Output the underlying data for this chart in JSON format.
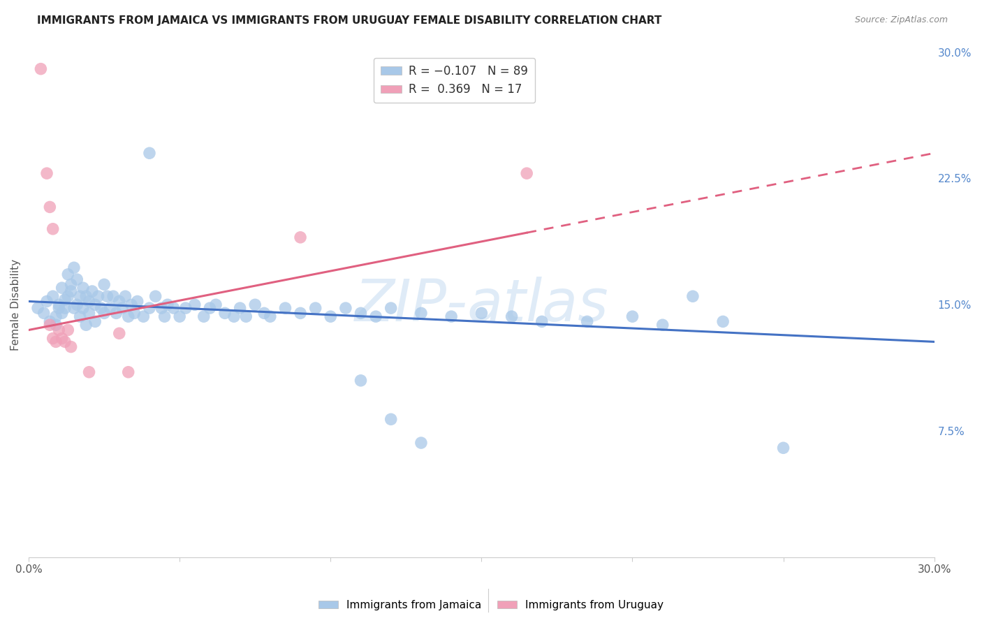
{
  "title": "IMMIGRANTS FROM JAMAICA VS IMMIGRANTS FROM URUGUAY FEMALE DISABILITY CORRELATION CHART",
  "source": "Source: ZipAtlas.com",
  "ylabel": "Female Disability",
  "x_min": 0.0,
  "x_max": 0.3,
  "y_min": 0.0,
  "y_max": 0.3,
  "y_ticks_right": [
    0.075,
    0.15,
    0.225,
    0.3
  ],
  "y_tick_labels_right": [
    "7.5%",
    "15.0%",
    "22.5%",
    "30.0%"
  ],
  "watermark": "ZIPAtlas",
  "blue_color": "#a8c8e8",
  "pink_color": "#f0a0b8",
  "blue_line_color": "#4472c4",
  "pink_line_color": "#e06080",
  "blue_scatter": [
    [
      0.003,
      0.148
    ],
    [
      0.005,
      0.145
    ],
    [
      0.006,
      0.152
    ],
    [
      0.007,
      0.14
    ],
    [
      0.008,
      0.155
    ],
    [
      0.009,
      0.138
    ],
    [
      0.009,
      0.143
    ],
    [
      0.01,
      0.15
    ],
    [
      0.01,
      0.148
    ],
    [
      0.011,
      0.16
    ],
    [
      0.011,
      0.145
    ],
    [
      0.012,
      0.153
    ],
    [
      0.012,
      0.148
    ],
    [
      0.013,
      0.168
    ],
    [
      0.013,
      0.155
    ],
    [
      0.014,
      0.162
    ],
    [
      0.014,
      0.158
    ],
    [
      0.015,
      0.172
    ],
    [
      0.015,
      0.148
    ],
    [
      0.016,
      0.165
    ],
    [
      0.016,
      0.15
    ],
    [
      0.017,
      0.155
    ],
    [
      0.017,
      0.143
    ],
    [
      0.018,
      0.16
    ],
    [
      0.018,
      0.148
    ],
    [
      0.019,
      0.155
    ],
    [
      0.019,
      0.138
    ],
    [
      0.02,
      0.152
    ],
    [
      0.02,
      0.145
    ],
    [
      0.021,
      0.158
    ],
    [
      0.022,
      0.15
    ],
    [
      0.022,
      0.14
    ],
    [
      0.023,
      0.155
    ],
    [
      0.024,
      0.148
    ],
    [
      0.025,
      0.162
    ],
    [
      0.025,
      0.145
    ],
    [
      0.026,
      0.155
    ],
    [
      0.027,
      0.148
    ],
    [
      0.028,
      0.155
    ],
    [
      0.029,
      0.145
    ],
    [
      0.03,
      0.152
    ],
    [
      0.031,
      0.148
    ],
    [
      0.032,
      0.155
    ],
    [
      0.033,
      0.143
    ],
    [
      0.034,
      0.15
    ],
    [
      0.035,
      0.145
    ],
    [
      0.036,
      0.152
    ],
    [
      0.038,
      0.143
    ],
    [
      0.04,
      0.148
    ],
    [
      0.042,
      0.155
    ],
    [
      0.044,
      0.148
    ],
    [
      0.045,
      0.143
    ],
    [
      0.046,
      0.15
    ],
    [
      0.048,
      0.148
    ],
    [
      0.05,
      0.143
    ],
    [
      0.052,
      0.148
    ],
    [
      0.055,
      0.15
    ],
    [
      0.058,
      0.143
    ],
    [
      0.06,
      0.148
    ],
    [
      0.062,
      0.15
    ],
    [
      0.065,
      0.145
    ],
    [
      0.068,
      0.143
    ],
    [
      0.07,
      0.148
    ],
    [
      0.072,
      0.143
    ],
    [
      0.075,
      0.15
    ],
    [
      0.078,
      0.145
    ],
    [
      0.08,
      0.143
    ],
    [
      0.085,
      0.148
    ],
    [
      0.09,
      0.145
    ],
    [
      0.095,
      0.148
    ],
    [
      0.1,
      0.143
    ],
    [
      0.105,
      0.148
    ],
    [
      0.11,
      0.145
    ],
    [
      0.115,
      0.143
    ],
    [
      0.12,
      0.148
    ],
    [
      0.13,
      0.145
    ],
    [
      0.14,
      0.143
    ],
    [
      0.15,
      0.145
    ],
    [
      0.16,
      0.143
    ],
    [
      0.17,
      0.14
    ],
    [
      0.185,
      0.14
    ],
    [
      0.2,
      0.143
    ],
    [
      0.21,
      0.138
    ],
    [
      0.22,
      0.155
    ],
    [
      0.23,
      0.14
    ],
    [
      0.25,
      0.065
    ],
    [
      0.04,
      0.24
    ],
    [
      0.11,
      0.105
    ],
    [
      0.12,
      0.082
    ],
    [
      0.13,
      0.068
    ]
  ],
  "pink_scatter": [
    [
      0.004,
      0.29
    ],
    [
      0.006,
      0.228
    ],
    [
      0.007,
      0.208
    ],
    [
      0.008,
      0.195
    ],
    [
      0.007,
      0.138
    ],
    [
      0.008,
      0.13
    ],
    [
      0.009,
      0.128
    ],
    [
      0.01,
      0.135
    ],
    [
      0.011,
      0.13
    ],
    [
      0.012,
      0.128
    ],
    [
      0.013,
      0.135
    ],
    [
      0.014,
      0.125
    ],
    [
      0.02,
      0.11
    ],
    [
      0.03,
      0.133
    ],
    [
      0.033,
      0.11
    ],
    [
      0.165,
      0.228
    ],
    [
      0.09,
      0.19
    ]
  ],
  "grid_color": "#d0d8e0",
  "background_color": "#ffffff",
  "title_fontsize": 11,
  "source_fontsize": 9,
  "axis_color": "#888888",
  "right_axis_color": "#5588cc"
}
